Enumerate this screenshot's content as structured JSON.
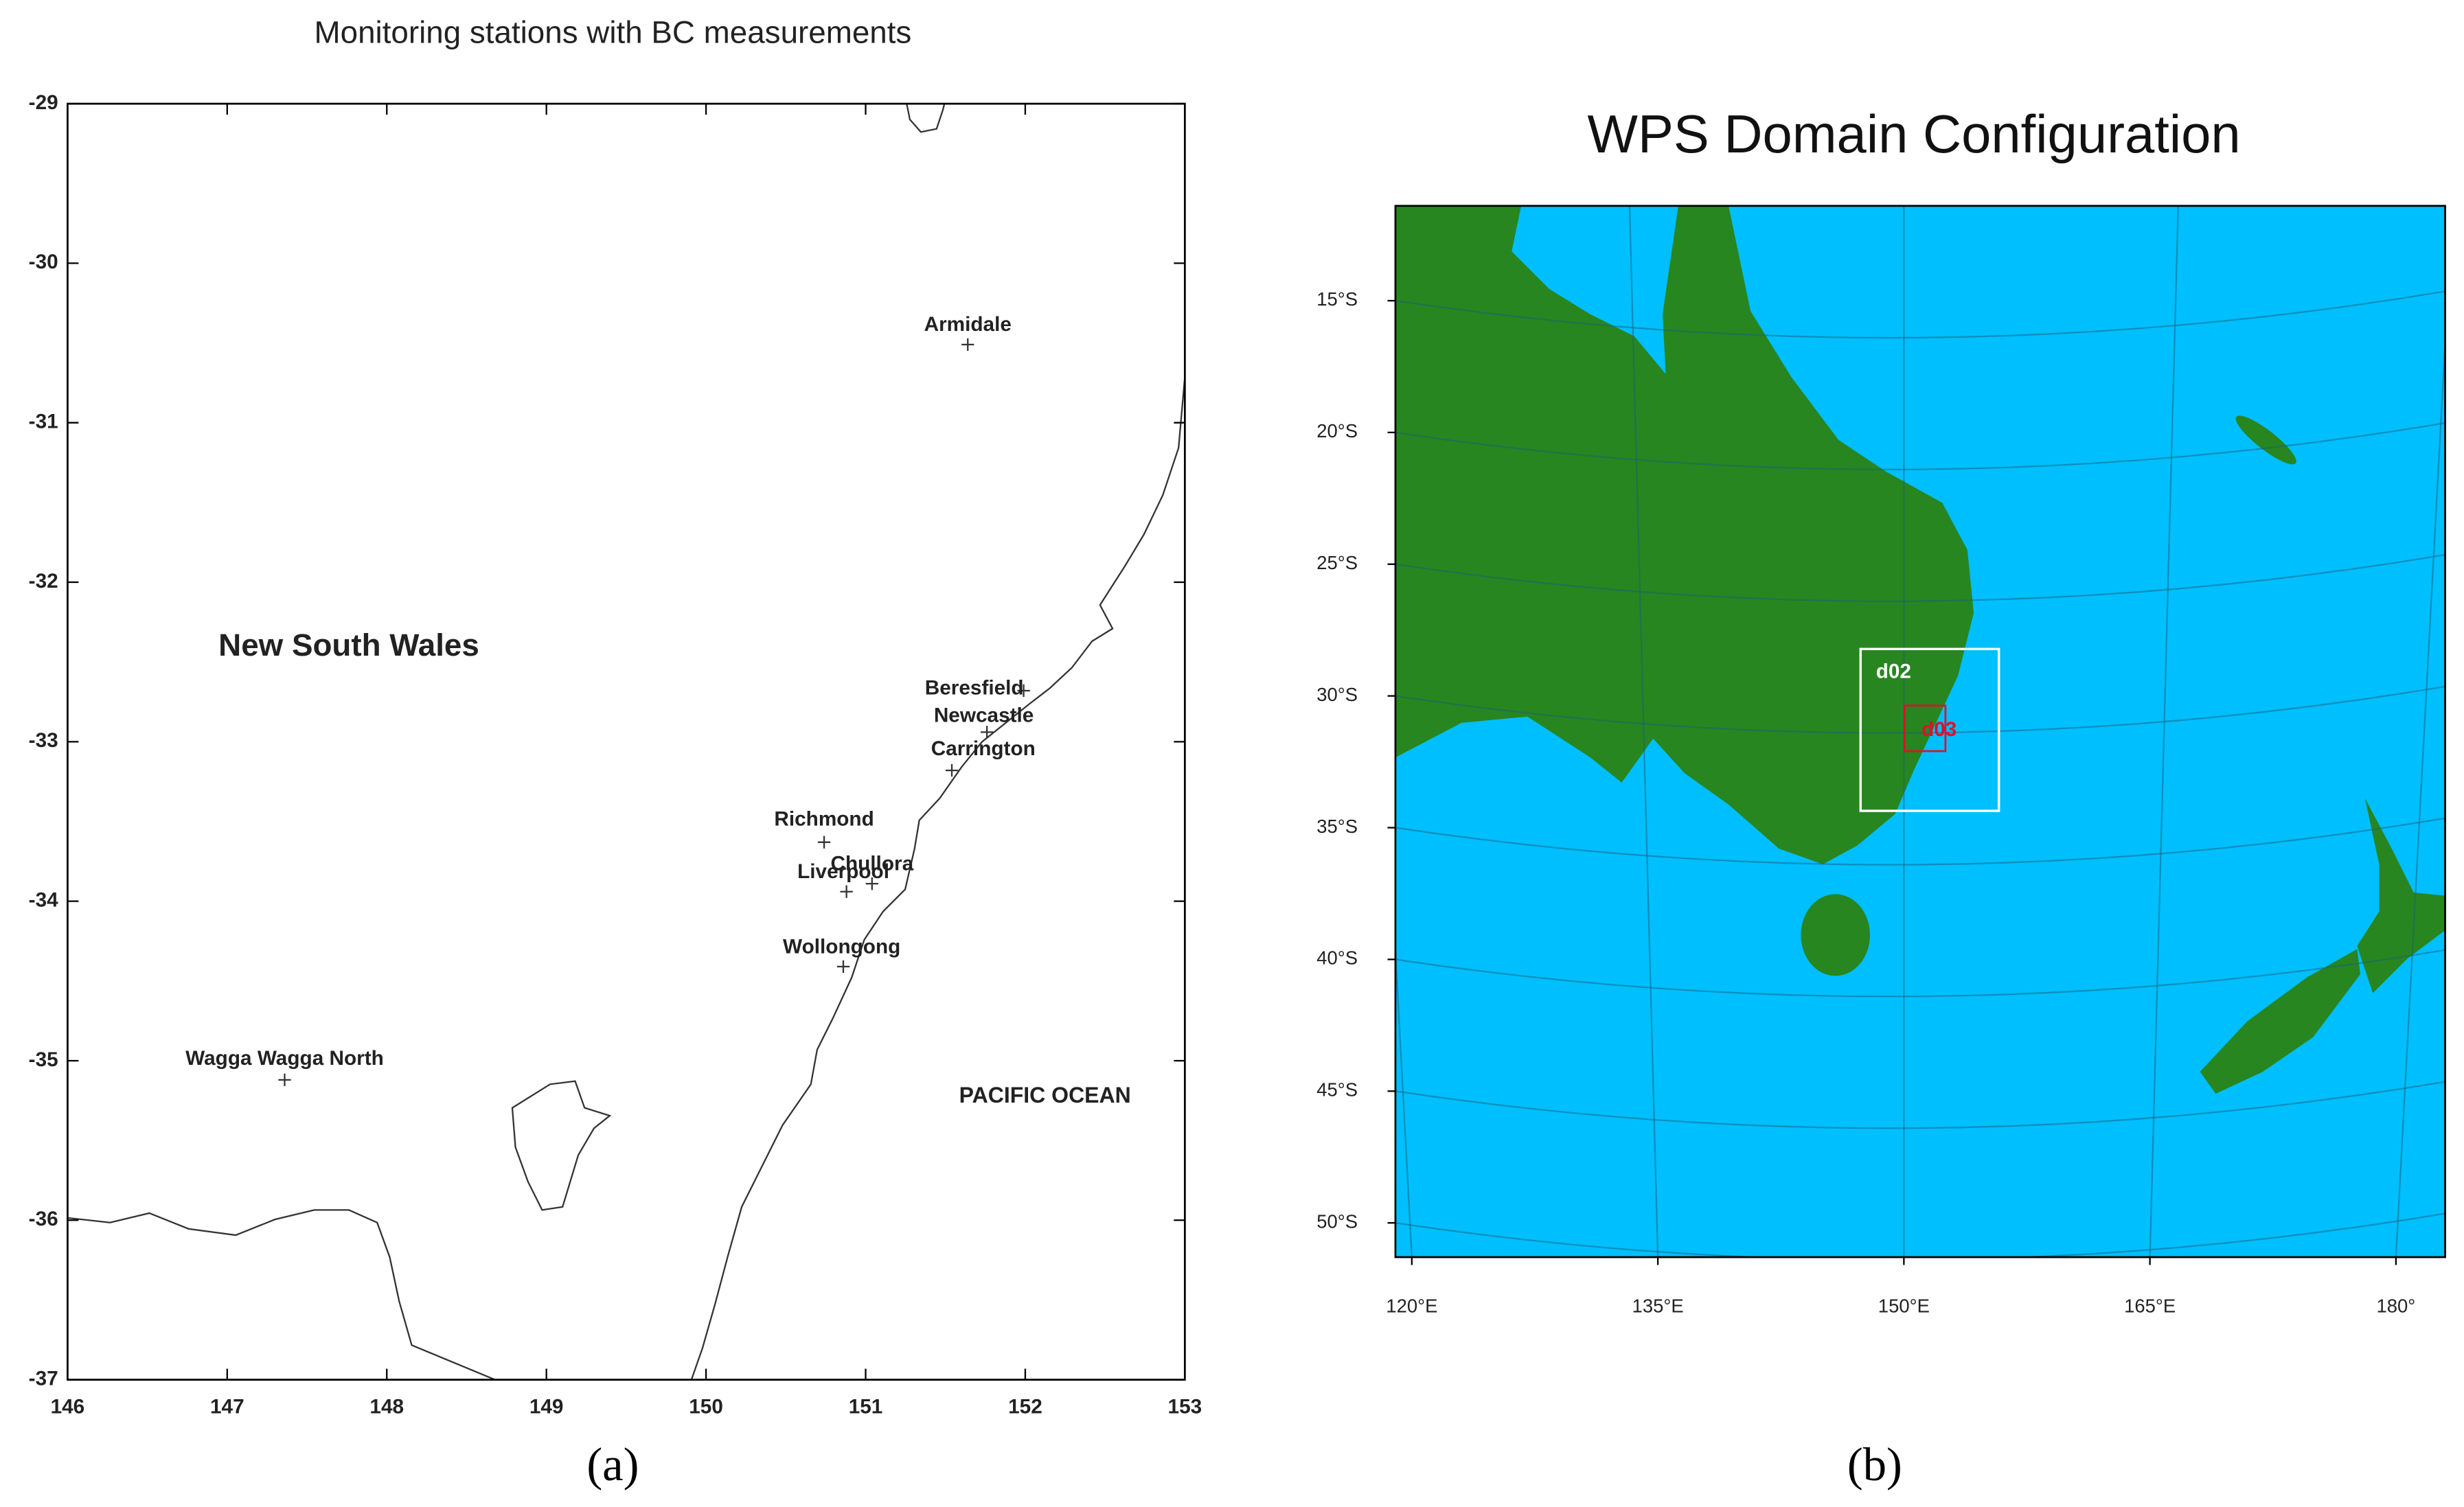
{
  "panel_a": {
    "title": "Monitoring stations with BC measurements",
    "caption": "(a)",
    "xlim": [
      146,
      153
    ],
    "ylim": [
      -37,
      -29
    ],
    "xticks": [
      146,
      147,
      148,
      149,
      150,
      151,
      152,
      153
    ],
    "yticks": [
      -29,
      -30,
      -31,
      -32,
      -33,
      -34,
      -35,
      -36,
      -37
    ],
    "regions": [
      "New South Wales",
      "PACIFIC OCEAN"
    ],
    "stations": [
      {
        "name": "Armidale",
        "lon": 151.64,
        "lat": -30.51
      },
      {
        "name": "Beresfield",
        "lon": 151.99,
        "lat": -32.68
      },
      {
        "name": "Newcastle",
        "lon": 151.76,
        "lat": -32.94
      },
      {
        "name": "Carrington",
        "lon": 151.54,
        "lat": -33.18
      },
      {
        "name": "Richmond",
        "lon": 150.74,
        "lat": -33.63
      },
      {
        "name": "Chullora",
        "lon": 151.04,
        "lat": -33.89
      },
      {
        "name": "Liverpool",
        "lon": 150.88,
        "lat": -33.94
      },
      {
        "name": "Wollongong",
        "lon": 150.86,
        "lat": -34.41
      },
      {
        "name": "Wagga Wagga North",
        "lon": 147.36,
        "lat": -35.12
      }
    ]
  },
  "panel_b": {
    "title": "WPS Domain Configuration",
    "caption": "(b)",
    "xlim": [
      119,
      183
    ],
    "ylim": [
      -51.3,
      -11.4
    ],
    "xticks": [
      {
        "value": 120,
        "label": "120°E"
      },
      {
        "value": 135,
        "label": "135°E"
      },
      {
        "value": 150,
        "label": "150°E"
      },
      {
        "value": 165,
        "label": "165°E"
      },
      {
        "value": 180,
        "label": "180°"
      }
    ],
    "yticks": [
      {
        "value": -15,
        "label": "15°S"
      },
      {
        "value": -20,
        "label": "20°S"
      },
      {
        "value": -25,
        "label": "25°S"
      },
      {
        "value": -30,
        "label": "30°S"
      },
      {
        "value": -35,
        "label": "35°S"
      },
      {
        "value": -40,
        "label": "40°S"
      },
      {
        "value": -45,
        "label": "45°S"
      },
      {
        "value": -50,
        "label": "50°S"
      }
    ],
    "domains": [
      "d02",
      "d03"
    ]
  }
}
